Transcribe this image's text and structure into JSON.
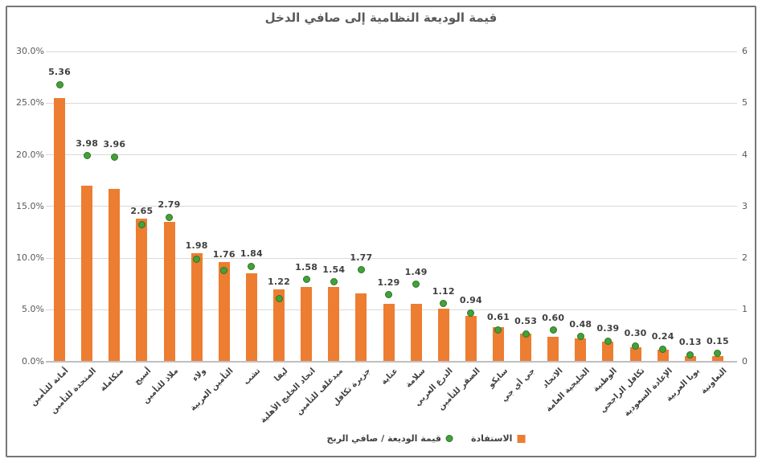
{
  "title": "قيمة الوديعة النظامية إلى صافي الدخل",
  "legend": {
    "dots_label": "قيمة الوديعة / صافي الربح",
    "bars_label": "الاستفادة"
  },
  "colors": {
    "bar": "#ED7D31",
    "dot_fill": "#44A13A",
    "dot_border": "#2C7423",
    "title_text": "#595959",
    "axis_text": "#595959",
    "data_label_text": "#3F3F3F",
    "x_label_text": "#404040",
    "gridline": "#D9D9D9",
    "axis_line": "#BFBFBF",
    "frame_border": "#777777"
  },
  "chart_data": {
    "type": "bar",
    "subtype": "combo-bar-scatter",
    "title": "قيمة الوديعة النظامية إلى صافي الدخل",
    "grid": true,
    "legend_position": "bottom",
    "categories": [
      "أمانة للتأمين",
      "المتحدة للتأمين",
      "متكاملة",
      "أسيج",
      "ملاذ للتأمين",
      "ولاء",
      "التأمين العربية",
      "تشب",
      "ليفا",
      "اتحاد الخليج الأهلية",
      "ميدغلف للتأمين",
      "جزيرة تكافل",
      "عناية",
      "سلامة",
      "الدرع العربي",
      "الصقر للتأمين",
      "سايكو",
      "جي أي جي",
      "الاتحاد",
      "الخليجية العامة",
      "الوطنية",
      "تكافل الراجحي",
      "الإعادة السعودية",
      "بوبا العربية",
      "التعاونية"
    ],
    "series": [
      {
        "name": "الاستفادة",
        "type": "bar",
        "axis": "left",
        "unit": "%",
        "values": [
          25.5,
          17.0,
          16.7,
          13.8,
          13.5,
          10.5,
          9.6,
          8.5,
          7.0,
          7.2,
          7.2,
          6.6,
          5.6,
          5.6,
          5.1,
          4.4,
          3.3,
          2.7,
          2.4,
          2.2,
          1.9,
          1.4,
          1.1,
          0.5,
          0.5
        ]
      },
      {
        "name": "قيمة الوديعة / صافي الربح",
        "type": "scatter",
        "axis": "right",
        "values": [
          5.36,
          3.98,
          3.96,
          2.65,
          2.79,
          1.98,
          1.76,
          1.84,
          1.22,
          1.58,
          1.54,
          1.77,
          1.29,
          1.49,
          1.12,
          0.94,
          0.61,
          0.53,
          0.6,
          0.48,
          0.39,
          0.3,
          0.24,
          0.13,
          0.15
        ],
        "data_labels": "above, 2 decimals"
      }
    ],
    "left_axis": {
      "min": 0,
      "max": 30,
      "unit": "%",
      "ticks": [
        "0.0%",
        "5.0%",
        "10.0%",
        "15.0%",
        "20.0%",
        "25.0%",
        "30.0%"
      ]
    },
    "right_axis": {
      "min": 0,
      "max": 6,
      "ticks": [
        "0",
        "1",
        "2",
        "3",
        "4",
        "5",
        "6"
      ]
    }
  }
}
